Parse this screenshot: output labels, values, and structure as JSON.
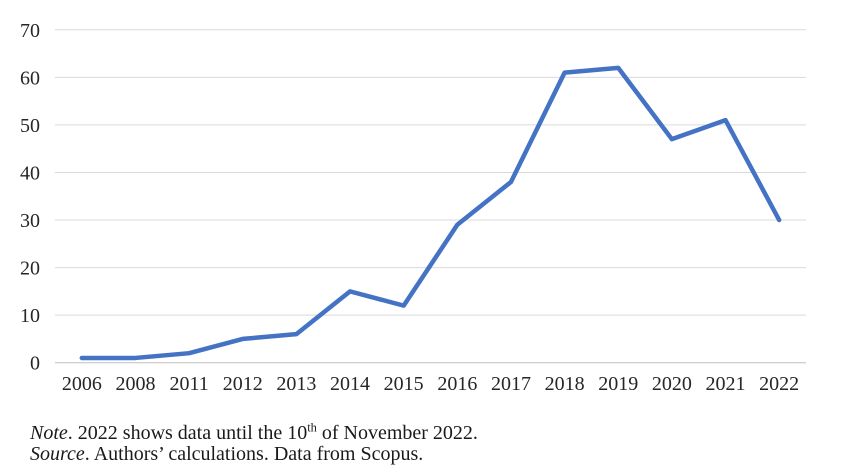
{
  "chart_data": {
    "type": "line",
    "title": "",
    "xlabel": "",
    "ylabel": "",
    "categories": [
      "2006",
      "2008",
      "2011",
      "2012",
      "2013",
      "2014",
      "2015",
      "2016",
      "2017",
      "2018",
      "2019",
      "2020",
      "2021",
      "2022"
    ],
    "values": [
      1,
      1,
      2,
      5,
      6,
      15,
      12,
      29,
      38,
      61,
      62,
      47,
      51,
      30
    ],
    "ylim": [
      0,
      70
    ],
    "ytick_step": 10,
    "ytick_labels": [
      "0",
      "10",
      "20",
      "30",
      "40",
      "50",
      "60",
      "70"
    ],
    "grid": true,
    "legend": "none",
    "line_color": "#4472C4",
    "gridline_color": "#D9D9D9",
    "axis_line_color": "#BFBFBF",
    "axis_text_color": "#262626"
  },
  "footer": {
    "note_label": "Note",
    "note_body_pre": ". 2022 shows data until the 10",
    "note_sup": "th",
    "note_body_post": " of November 2022.",
    "source_label": "Source",
    "source_body": ". Authors’ calculations. Data from Scopus."
  }
}
